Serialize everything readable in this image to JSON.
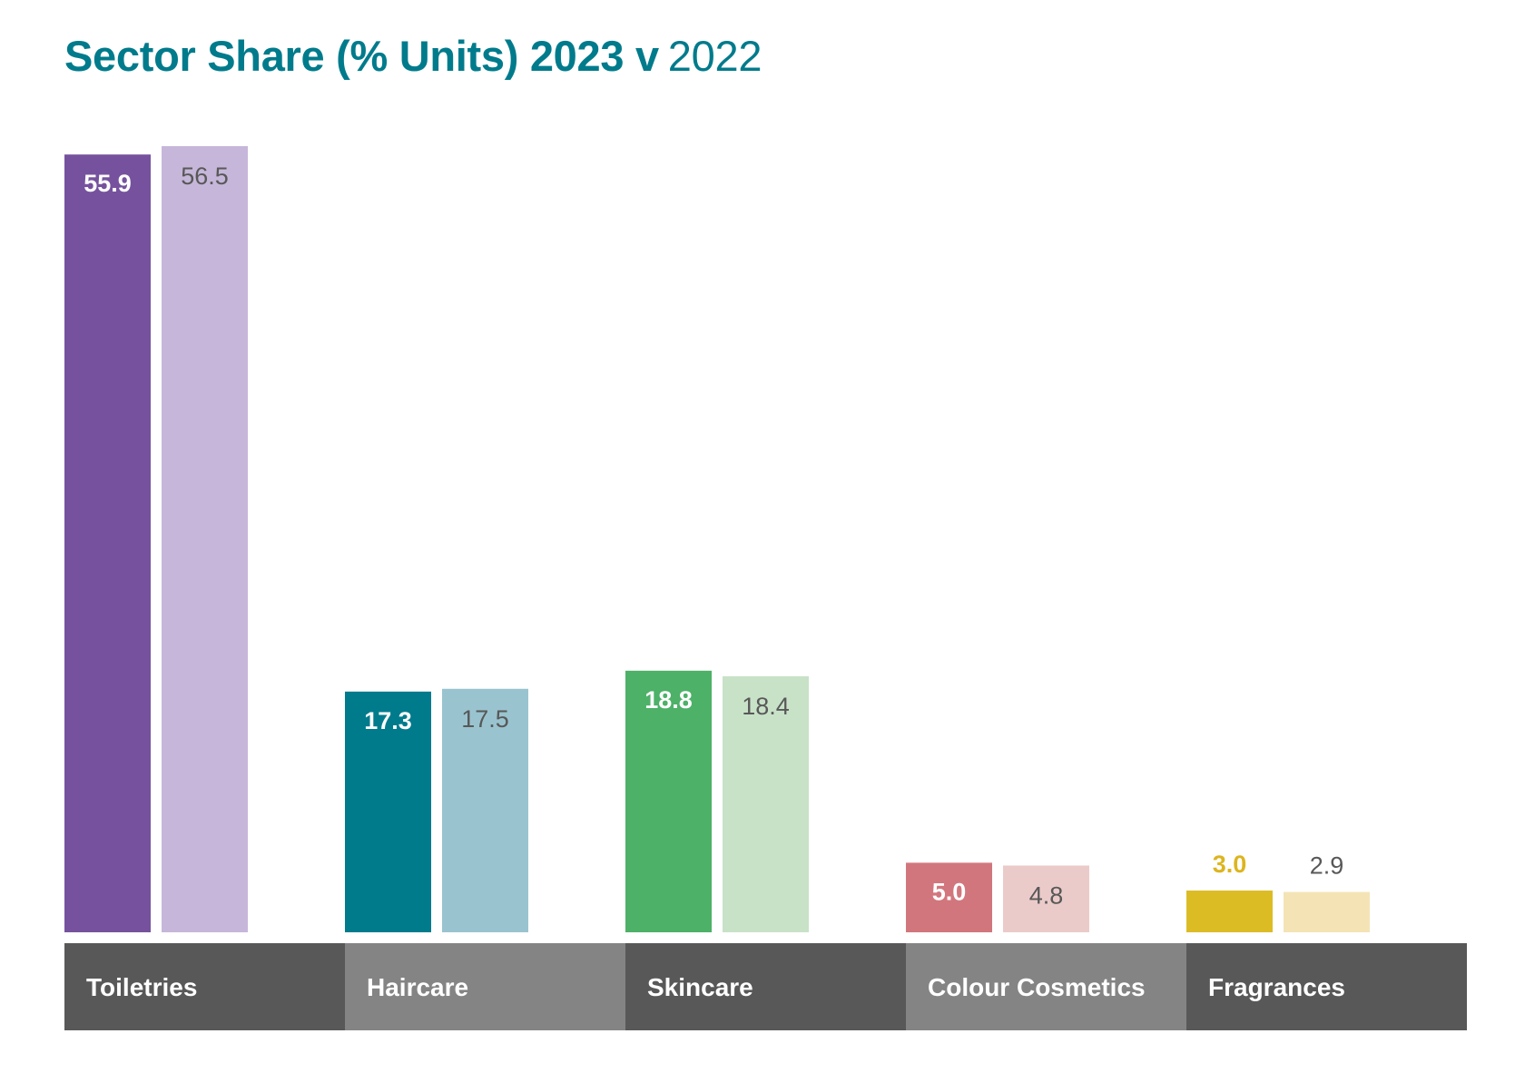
{
  "title": {
    "bold": "Sector Share (% Units) 2023 v",
    "light": "2022"
  },
  "chart_data": {
    "type": "bar",
    "categories": [
      "Toiletries",
      "Haircare",
      "Skincare",
      "Colour Cosmetics",
      "Fragrances"
    ],
    "series": [
      {
        "values": [
          55.9,
          17.3,
          18.8,
          5.0,
          3.0
        ]
      },
      {
        "values": [
          56.5,
          17.5,
          18.4,
          4.8,
          2.9
        ]
      }
    ],
    "value_labels_current": [
      "55.9",
      "17.3",
      "18.8",
      "5.0",
      "3.0"
    ],
    "value_labels_previous": [
      "56.5",
      "17.5",
      "18.4",
      "4.8",
      "2.9"
    ],
    "colors_current": [
      "#76529e",
      "#007b8c",
      "#4db168",
      "#d2767d",
      "#dcbc25"
    ],
    "colors_previous": [
      "#c6b7da",
      "#99c4cf",
      "#c8e2c8",
      "#ebcbca",
      "#f4e4b5"
    ],
    "label_colors_current": [
      "#ffffff",
      "#ffffff",
      "#ffffff",
      "#ffffff",
      "#dcb51f"
    ],
    "label_color_previous": "#585858",
    "label_band_colors": [
      "#585858",
      "#848484",
      "#585858",
      "#848484",
      "#585858"
    ],
    "legend": "none",
    "grid": false,
    "ylim": [
      0,
      56.5
    ]
  }
}
